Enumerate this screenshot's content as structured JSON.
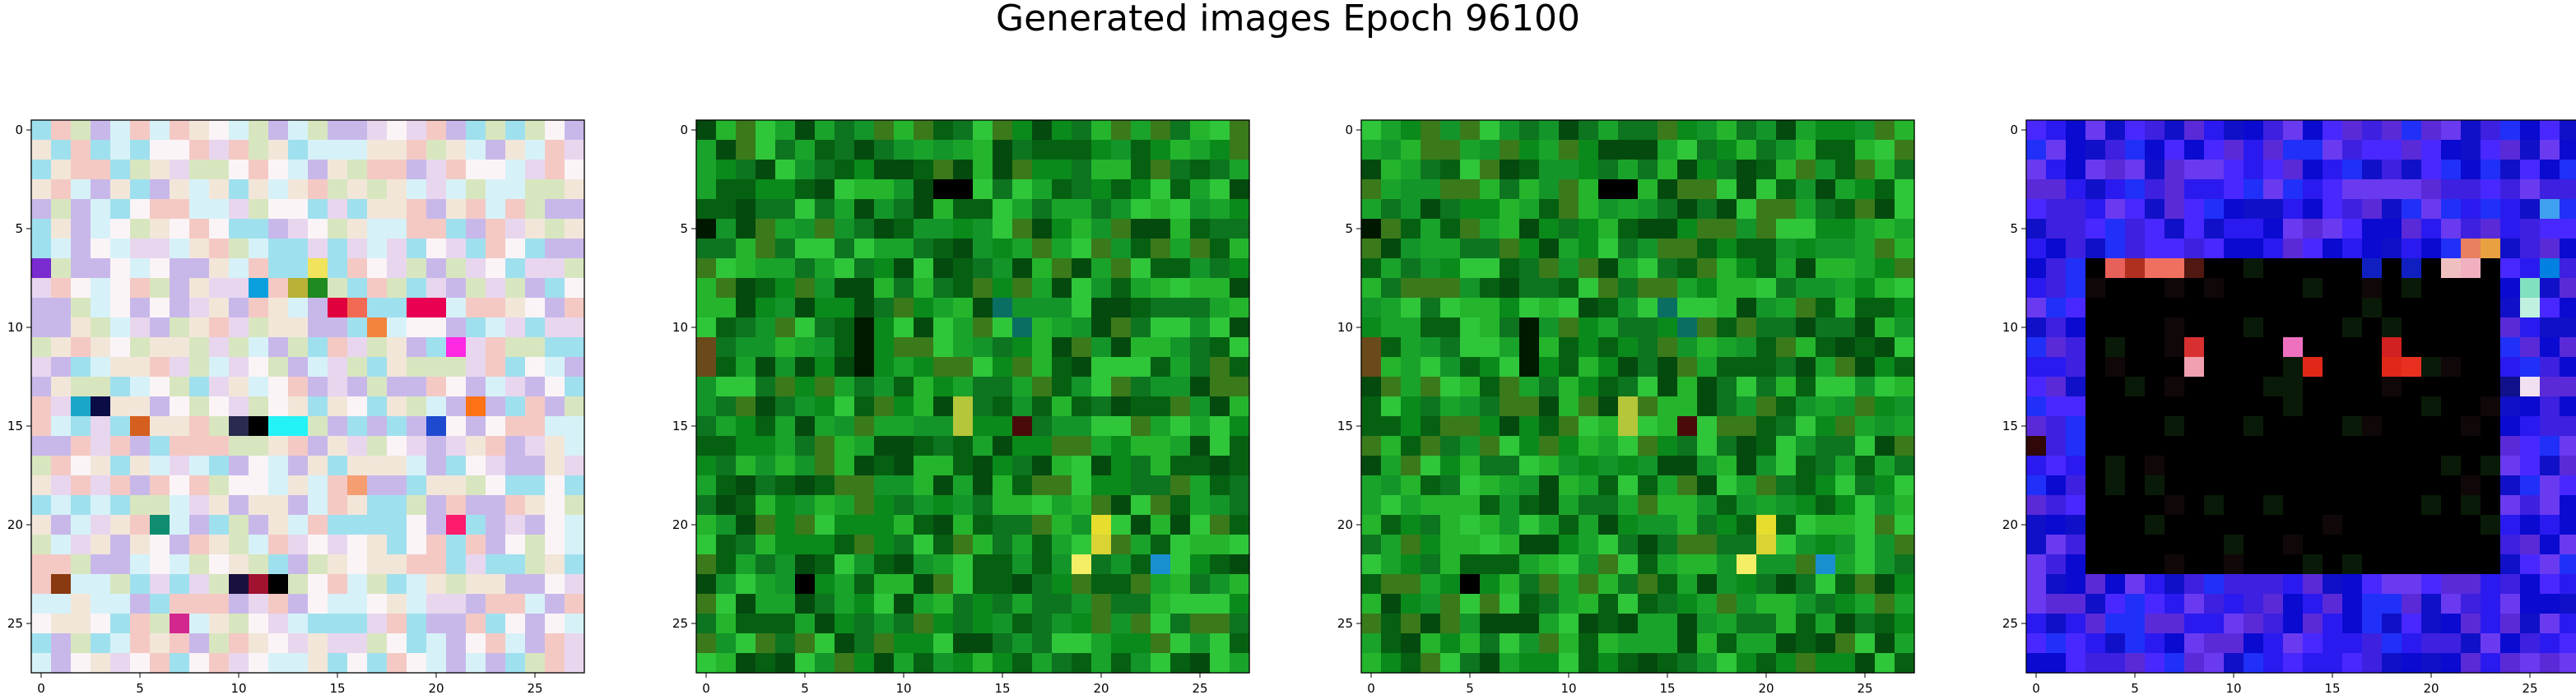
{
  "figure": {
    "title": "Generated images Epoch 96100"
  },
  "chart_data": [
    {
      "type": "heatmap",
      "title": "",
      "xlabel": "",
      "ylabel": "",
      "xlim": [
        -0.5,
        27.5
      ],
      "ylim": [
        27.5,
        -0.5
      ],
      "x_ticks": [
        0,
        5,
        10,
        15,
        20,
        25
      ],
      "y_ticks": [
        0,
        5,
        10,
        15,
        20,
        25
      ],
      "grid": false,
      "colors": {
        "overall": "pastel noise",
        "palette": [
          "#f2e6d9",
          "#d6f2f8",
          "#e8d6ef",
          "#fbf4f7",
          "#c8b8ea",
          "#9fe0ee",
          "#f4c9c4",
          "#d8e6bf"
        ],
        "accent": [
          {
            "row": 7,
            "col": 0,
            "color": "#7a2bd0"
          },
          {
            "row": 8,
            "col": 11,
            "color": "#0a9fdf"
          },
          {
            "row": 8,
            "col": 13,
            "color": "#b9b036"
          },
          {
            "row": 8,
            "col": 14,
            "color": "#1f8a1f"
          },
          {
            "row": 7,
            "col": 14,
            "color": "#f1e35c"
          },
          {
            "row": 9,
            "col": 15,
            "color": "#e0003e"
          },
          {
            "row": 9,
            "col": 16,
            "color": "#f36a54"
          },
          {
            "row": 9,
            "col": 19,
            "color": "#e90052"
          },
          {
            "row": 9,
            "col": 20,
            "color": "#e90052"
          },
          {
            "row": 10,
            "col": 17,
            "color": "#f3843e"
          },
          {
            "row": 11,
            "col": 21,
            "color": "#ff28e3"
          },
          {
            "row": 14,
            "col": 2,
            "color": "#1aa6c8"
          },
          {
            "row": 14,
            "col": 3,
            "color": "#0a0d45"
          },
          {
            "row": 15,
            "col": 5,
            "color": "#d45f1e"
          },
          {
            "row": 15,
            "col": 10,
            "color": "#2a2a50"
          },
          {
            "row": 15,
            "col": 11,
            "color": "#000000"
          },
          {
            "row": 15,
            "col": 12,
            "color": "#23f3f7"
          },
          {
            "row": 15,
            "col": 13,
            "color": "#23f3f7"
          },
          {
            "row": 15,
            "col": 20,
            "color": "#1e4ad0"
          },
          {
            "row": 14,
            "col": 22,
            "color": "#ff7316"
          },
          {
            "row": 18,
            "col": 16,
            "color": "#f49e72"
          },
          {
            "row": 20,
            "col": 6,
            "color": "#0e8d70"
          },
          {
            "row": 20,
            "col": 21,
            "color": "#ff1a6e"
          },
          {
            "row": 23,
            "col": 1,
            "color": "#8a3a10"
          },
          {
            "row": 23,
            "col": 10,
            "color": "#1a1040"
          },
          {
            "row": 23,
            "col": 11,
            "color": "#a01230"
          },
          {
            "row": 23,
            "col": 12,
            "color": "#000000"
          },
          {
            "row": 25,
            "col": 7,
            "color": "#d4278e"
          }
        ]
      }
    },
    {
      "type": "heatmap",
      "title": "",
      "xlabel": "",
      "ylabel": "",
      "xlim": [
        -0.5,
        27.5
      ],
      "ylim": [
        27.5,
        -0.5
      ],
      "x_ticks": [
        0,
        5,
        10,
        15,
        20,
        25
      ],
      "y_ticks": [
        0,
        5,
        10,
        15,
        20,
        25
      ],
      "grid": false,
      "colors": {
        "overall": "green noise",
        "palette": [
          "#0a8a1a",
          "#1aa32a",
          "#066012",
          "#24b52c",
          "#0d7420",
          "#2fc63a",
          "#044a0e",
          "#13952a",
          "#3a7a1a"
        ],
        "accent": [
          {
            "row": 3,
            "col": 12,
            "color": "#000000"
          },
          {
            "row": 3,
            "col": 13,
            "color": "#000000"
          },
          {
            "row": 10,
            "col": 8,
            "color": "#001a00"
          },
          {
            "row": 11,
            "col": 8,
            "color": "#001a00"
          },
          {
            "row": 12,
            "col": 8,
            "color": "#001a00"
          },
          {
            "row": 9,
            "col": 15,
            "color": "#0a6f62"
          },
          {
            "row": 10,
            "col": 16,
            "color": "#0a6f62"
          },
          {
            "row": 14,
            "col": 13,
            "color": "#b5c63a"
          },
          {
            "row": 15,
            "col": 13,
            "color": "#b5c63a"
          },
          {
            "row": 15,
            "col": 16,
            "color": "#4a0a0a"
          },
          {
            "row": 20,
            "col": 20,
            "color": "#e6dd2d"
          },
          {
            "row": 21,
            "col": 20,
            "color": "#d9d434"
          },
          {
            "row": 22,
            "col": 19,
            "color": "#f4ee66"
          },
          {
            "row": 22,
            "col": 23,
            "color": "#1a8fd0"
          },
          {
            "row": 23,
            "col": 5,
            "color": "#000000"
          },
          {
            "row": 5,
            "col": 0,
            "color": "#001800"
          },
          {
            "row": 11,
            "col": 0,
            "color": "#6a4a1a"
          },
          {
            "row": 12,
            "col": 0,
            "color": "#6a4a1a"
          }
        ]
      }
    },
    {
      "type": "heatmap",
      "title": "",
      "xlabel": "",
      "ylabel": "",
      "xlim": [
        -0.5,
        27.5
      ],
      "ylim": [
        27.5,
        -0.5
      ],
      "x_ticks": [
        0,
        5,
        10,
        15,
        20,
        25
      ],
      "y_ticks": [
        0,
        5,
        10,
        15,
        20,
        25
      ],
      "grid": false,
      "colors": {
        "overall": "green noise",
        "palette": [
          "#0a8a1a",
          "#1aa32a",
          "#066012",
          "#24b52c",
          "#0d7420",
          "#2fc63a",
          "#044a0e",
          "#13952a",
          "#3a7a1a"
        ],
        "accent": [
          {
            "row": 3,
            "col": 12,
            "color": "#000000"
          },
          {
            "row": 3,
            "col": 13,
            "color": "#000000"
          },
          {
            "row": 10,
            "col": 8,
            "color": "#001a00"
          },
          {
            "row": 11,
            "col": 8,
            "color": "#001a00"
          },
          {
            "row": 12,
            "col": 8,
            "color": "#001a00"
          },
          {
            "row": 9,
            "col": 15,
            "color": "#0a6f62"
          },
          {
            "row": 10,
            "col": 16,
            "color": "#0a6f62"
          },
          {
            "row": 14,
            "col": 13,
            "color": "#b5c63a"
          },
          {
            "row": 15,
            "col": 13,
            "color": "#b5c63a"
          },
          {
            "row": 15,
            "col": 16,
            "color": "#4a0a0a"
          },
          {
            "row": 20,
            "col": 20,
            "color": "#e6dd2d"
          },
          {
            "row": 21,
            "col": 20,
            "color": "#d9d434"
          },
          {
            "row": 22,
            "col": 19,
            "color": "#f4ee66"
          },
          {
            "row": 22,
            "col": 23,
            "color": "#1a8fd0"
          },
          {
            "row": 23,
            "col": 5,
            "color": "#000000"
          },
          {
            "row": 5,
            "col": 0,
            "color": "#001800"
          },
          {
            "row": 11,
            "col": 0,
            "color": "#6a4a1a"
          },
          {
            "row": 12,
            "col": 0,
            "color": "#6a4a1a"
          }
        ]
      }
    },
    {
      "type": "heatmap",
      "title": "",
      "xlabel": "",
      "ylabel": "",
      "xlim": [
        -0.5,
        27.5
      ],
      "ylim": [
        27.5,
        -0.5
      ],
      "x_ticks": [
        0,
        5,
        10,
        15,
        20,
        25
      ],
      "y_ticks": [
        0,
        5,
        10,
        15,
        20,
        25
      ],
      "grid": false,
      "colors": {
        "overall": "blue/purple border with black center",
        "palette": [
          "#2a1af0",
          "#3d20e0",
          "#1010c8",
          "#5a2ad8",
          "#0a0ad0",
          "#4828ff",
          "#2030f8",
          "#6a3af0"
        ],
        "center_color": "#000000",
        "center_rows": [
          7,
          22
        ],
        "center_cols": [
          3,
          23
        ],
        "accent": [
          {
            "row": 7,
            "col": 4,
            "color": "#e8605a"
          },
          {
            "row": 7,
            "col": 5,
            "color": "#b03020"
          },
          {
            "row": 7,
            "col": 6,
            "color": "#f07060"
          },
          {
            "row": 7,
            "col": 7,
            "color": "#f07060"
          },
          {
            "row": 7,
            "col": 8,
            "color": "#501810"
          },
          {
            "row": 7,
            "col": 17,
            "color": "#1020c0"
          },
          {
            "row": 7,
            "col": 19,
            "color": "#1020c0"
          },
          {
            "row": 7,
            "col": 21,
            "color": "#f0c0c0"
          },
          {
            "row": 7,
            "col": 22,
            "color": "#f0b0c0"
          },
          {
            "row": 6,
            "col": 22,
            "color": "#e88060"
          },
          {
            "row": 6,
            "col": 23,
            "color": "#e8a040"
          },
          {
            "row": 11,
            "col": 8,
            "color": "#d83030"
          },
          {
            "row": 12,
            "col": 8,
            "color": "#f0a0b0"
          },
          {
            "row": 11,
            "col": 13,
            "color": "#f070c0"
          },
          {
            "row": 12,
            "col": 14,
            "color": "#e02818"
          },
          {
            "row": 11,
            "col": 18,
            "color": "#d02020"
          },
          {
            "row": 12,
            "col": 18,
            "color": "#e02818"
          },
          {
            "row": 12,
            "col": 19,
            "color": "#e83020"
          },
          {
            "row": 8,
            "col": 25,
            "color": "#80e0c0"
          },
          {
            "row": 9,
            "col": 25,
            "color": "#c0f0e0"
          },
          {
            "row": 13,
            "col": 25,
            "color": "#f0e0f0"
          },
          {
            "row": 13,
            "col": 24,
            "color": "#10108a"
          },
          {
            "row": 16,
            "col": 0,
            "color": "#300808"
          },
          {
            "row": 7,
            "col": 26,
            "color": "#0080e0"
          },
          {
            "row": 4,
            "col": 26,
            "color": "#40a0f0"
          }
        ]
      }
    }
  ]
}
